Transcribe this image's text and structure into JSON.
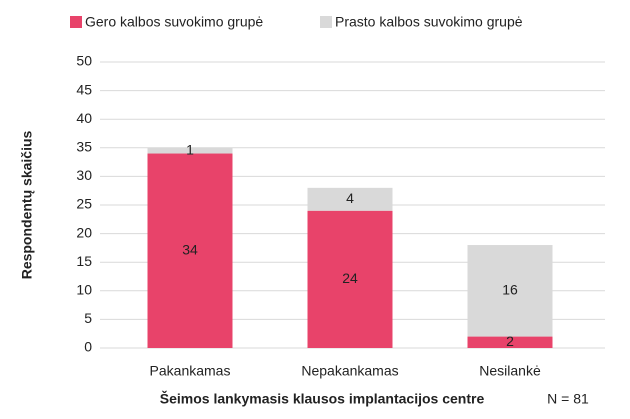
{
  "chart_data": {
    "type": "stacked_bar",
    "categories": [
      "Pakankamas",
      "Nepakankamas",
      "Nesilankė"
    ],
    "series": [
      {
        "name": "Gero kalbos suvokimo grupė",
        "color": "#e8436a",
        "values": [
          34,
          24,
          2
        ]
      },
      {
        "name": "Prasto kalbos suvokimo grupė",
        "color": "#d9d9d9",
        "values": [
          1,
          4,
          16
        ]
      }
    ],
    "ylim": [
      0,
      50
    ],
    "yticks": [
      0,
      5,
      10,
      15,
      20,
      25,
      30,
      35,
      40,
      45,
      50
    ],
    "grid": true,
    "y_label": "Respondentų skaičius",
    "x_label": "Šeimos lankymasis klausos implantacijos centre",
    "annotation": "N = 81",
    "legend": "top"
  }
}
